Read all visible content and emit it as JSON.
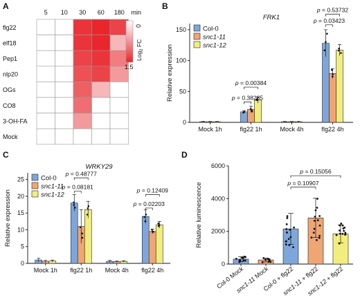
{
  "chart_data": [
    {
      "panel": "A",
      "type": "heatmap",
      "columns": [
        "5",
        "10",
        "30",
        "60",
        "180"
      ],
      "column_unit": "min",
      "rows": [
        "flg22",
        "elf18",
        "Pep1",
        "nlp20",
        "OGs",
        "CO8",
        "3-OH-FA",
        "Mock"
      ],
      "values": [
        [
          0,
          0,
          1.4,
          1.5,
          1.3
        ],
        [
          0,
          0,
          1.4,
          1.5,
          0.5
        ],
        [
          0,
          0,
          1.3,
          1.4,
          0.9
        ],
        [
          0,
          0,
          1.2,
          1.3,
          0.7
        ],
        [
          0,
          0,
          1.1,
          0.5,
          0.0
        ],
        [
          0,
          0,
          1.0,
          0.0,
          0.0
        ],
        [
          0,
          0,
          0.7,
          0.0,
          0.0
        ],
        [
          0,
          0,
          0.0,
          0.0,
          0.0
        ]
      ],
      "colorbar": {
        "min": 0,
        "max": 1.5,
        "label": "Log2 FC",
        "label_sub": "2"
      }
    },
    {
      "panel": "B",
      "type": "bar",
      "title": "FRK1",
      "ylabel": "Relative expression",
      "ylim": [
        0,
        160
      ],
      "yticks": [
        "0",
        "50",
        "100",
        "150"
      ],
      "categories": [
        "Mock 1h",
        "flg22 1h",
        "Mock 4h",
        "flg22 4h"
      ],
      "series": [
        {
          "name": "Col-0",
          "values": [
            1,
            17,
            1,
            128
          ],
          "errors": [
            0.5,
            2,
            0.5,
            22
          ]
        },
        {
          "name": "snc1-11",
          "values": [
            1,
            21,
            1,
            79
          ],
          "errors": [
            0.5,
            5,
            0.5,
            8
          ]
        },
        {
          "name": "snc1-12",
          "values": [
            1,
            36,
            1,
            117
          ],
          "errors": [
            0.5,
            5,
            0.5,
            9
          ]
        }
      ],
      "annotations": [
        {
          "text": "p = 0.00384",
          "cat": 1,
          "from": 0,
          "to": 2,
          "level": 57
        },
        {
          "text": "p = 0.38285",
          "cat": 1,
          "from": 0,
          "to": 1,
          "level": 33
        },
        {
          "text": "p = 0.53732",
          "cat": 3,
          "from": 0,
          "to": 2,
          "level": 175
        },
        {
          "text": "p = 0.03423",
          "cat": 3,
          "from": 0,
          "to": 1,
          "level": 158
        }
      ]
    },
    {
      "panel": "C",
      "type": "bar",
      "title": "WRKY29",
      "ylabel": "Relative expression",
      "ylim": [
        0,
        27
      ],
      "yticks": [
        "0",
        "5",
        "10",
        "15",
        "20",
        "25"
      ],
      "categories": [
        "Mock 1h",
        "flg22 1h",
        "Mock 4h",
        "flg22 4h"
      ],
      "series": [
        {
          "name": "Col-0",
          "values": [
            1,
            18,
            0.6,
            14
          ],
          "errors": [
            0.5,
            2.5,
            0.3,
            2
          ]
        },
        {
          "name": "snc1-11",
          "values": [
            0.6,
            11,
            0.5,
            9.5
          ],
          "errors": [
            0.3,
            5,
            0.2,
            0.7
          ]
        },
        {
          "name": "snc1-12",
          "values": [
            0.7,
            16,
            0.6,
            11.5
          ],
          "errors": [
            0.3,
            2.5,
            0.2,
            1
          ]
        }
      ],
      "annotations": [
        {
          "text": "p = 0.48777",
          "cat": 1,
          "from": 0,
          "to": 2,
          "level": 25.5
        },
        {
          "text": "p = 0.08181",
          "cat": 1,
          "from": 0,
          "to": 1,
          "level": 21.5
        },
        {
          "text": "p = 0.12409",
          "cat": 3,
          "from": 0,
          "to": 2,
          "level": 20.5
        },
        {
          "text": "p = 0.02203",
          "cat": 3,
          "from": 0,
          "to": 1,
          "level": 16.5
        }
      ]
    },
    {
      "panel": "D",
      "type": "bar",
      "ylabel": "Relative luminescence",
      "ylim": [
        0,
        6000
      ],
      "yticks": [
        "0",
        "2000",
        "4000",
        "6000"
      ],
      "categories": [
        "Col-0 Mock",
        "snc1-11 Mock",
        "Col-0 + flg22",
        "snc1-11 + flg22",
        "snc1-12 + flg22"
      ],
      "values": [
        300,
        250,
        2150,
        2820,
        1850
      ],
      "errors": [
        150,
        120,
        950,
        1200,
        550
      ],
      "annotations": [
        {
          "text": "p = 0.10907",
          "from": 2,
          "to": 3,
          "level": 4700
        },
        {
          "text": "p = 0.15056",
          "from": 2,
          "to": 4,
          "level": 5400
        }
      ]
    }
  ],
  "panel_letters": [
    "A",
    "B",
    "C",
    "D"
  ],
  "colors": {
    "col0": "#7ea6da",
    "snc1_11": "#f0a673",
    "snc1_12": "#f2ee7e",
    "heat": "#e8262b"
  }
}
